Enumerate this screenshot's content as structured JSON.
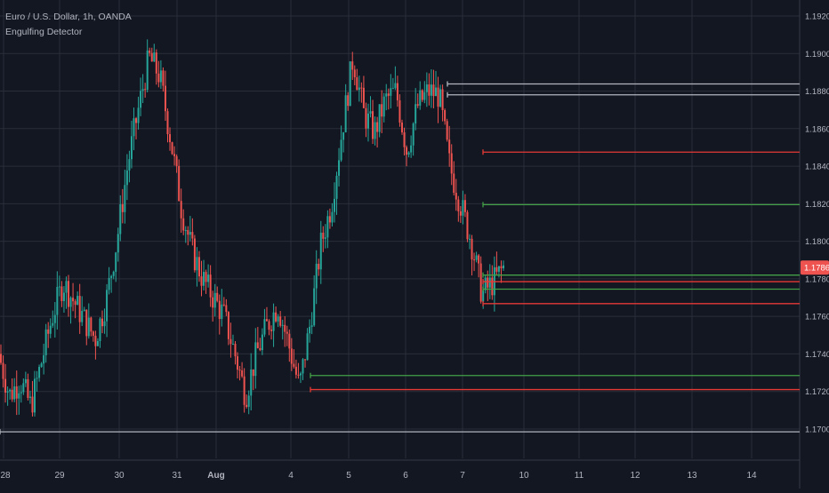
{
  "header": {
    "symbol_line": "Euro / U.S. Dollar, 1h, OANDA",
    "indicator_name": "Engulfing Detector"
  },
  "colors": {
    "background": "#131722",
    "grid": "#2a2e39",
    "up": "#26a69a",
    "down": "#ef5350",
    "level_green": "#43a047",
    "level_red": "#e53935",
    "level_white": "#b2b5be",
    "axis_text": "#b2b5be",
    "price_tag": "#ef5350"
  },
  "chart_data": {
    "type": "candlestick",
    "title": "Euro / U.S. Dollar, 1h, OANDA",
    "indicator": "Engulfing Detector",
    "ylim": [
      1.1693,
      1.1924
    ],
    "y_ticks": [
      "1.19200",
      "1.19000",
      "1.18800",
      "1.18600",
      "1.18400",
      "1.18200",
      "1.18000",
      "1.17800",
      "1.17600",
      "1.17400",
      "1.17200",
      "1.17000"
    ],
    "x_ticks": [
      "28",
      "29",
      "30",
      "31",
      "Aug",
      "4",
      "5",
      "6",
      "7",
      "10",
      "11",
      "12",
      "13",
      "14"
    ],
    "current_price": "1.17860",
    "grid": true,
    "price_path": [
      [
        "28",
        1.174
      ],
      [
        "28",
        1.1718
      ],
      [
        "28",
        1.1726
      ],
      [
        "29",
        1.1712
      ],
      [
        "29",
        1.1736
      ],
      [
        "29",
        1.176
      ],
      [
        "29",
        1.1778
      ],
      [
        "30",
        1.1768
      ],
      [
        "30",
        1.1758
      ],
      [
        "30",
        1.1748
      ],
      [
        "30",
        1.1768
      ],
      [
        "30",
        1.18
      ],
      [
        "30",
        1.184
      ],
      [
        "31",
        1.187
      ],
      [
        "31",
        1.1898
      ],
      [
        "31",
        1.1888
      ],
      [
        "31",
        1.1855
      ],
      [
        "31",
        1.1818
      ],
      [
        "31",
        1.1795
      ],
      [
        "Aug",
        1.178
      ],
      [
        "Aug",
        1.177
      ],
      [
        "Aug",
        1.176
      ],
      [
        "Aug",
        1.174
      ],
      [
        "Aug",
        1.1718
      ],
      [
        "Aug",
        1.174
      ],
      [
        "4",
        1.1755
      ],
      [
        "4",
        1.1766
      ],
      [
        "4",
        1.1745
      ],
      [
        "4",
        1.1722
      ],
      [
        "4",
        1.1756
      ],
      [
        "4",
        1.1798
      ],
      [
        "5",
        1.182
      ],
      [
        "5",
        1.186
      ],
      [
        "5",
        1.1898
      ],
      [
        "5",
        1.1868
      ],
      [
        "5",
        1.1858
      ],
      [
        "6",
        1.1875
      ],
      [
        "6",
        1.188
      ],
      [
        "6",
        1.1848
      ],
      [
        "6",
        1.1872
      ],
      [
        "6",
        1.188
      ],
      [
        "7",
        1.1878
      ],
      [
        "7",
        1.184
      ],
      [
        "7",
        1.182
      ],
      [
        "7",
        1.18
      ],
      [
        "7",
        1.1772
      ],
      [
        "7",
        1.1778
      ],
      [
        "7",
        1.1786
      ]
    ],
    "levels": [
      {
        "price": 1.18838,
        "start": "6",
        "color": "white"
      },
      {
        "price": 1.1878,
        "start": "6",
        "color": "white"
      },
      {
        "price": 1.18475,
        "start": "7",
        "color": "red"
      },
      {
        "price": 1.18195,
        "start": "7",
        "color": "green"
      },
      {
        "price": 1.1782,
        "start": "7",
        "color": "green"
      },
      {
        "price": 1.17785,
        "start": "7",
        "color": "red"
      },
      {
        "price": 1.17745,
        "start": "7",
        "color": "green"
      },
      {
        "price": 1.17668,
        "start": "7",
        "color": "red"
      },
      {
        "price": 1.17285,
        "start": "4",
        "color": "green"
      },
      {
        "price": 1.1721,
        "start": "4",
        "color": "red"
      },
      {
        "price": 1.16985,
        "start": "28",
        "color": "white"
      }
    ]
  }
}
